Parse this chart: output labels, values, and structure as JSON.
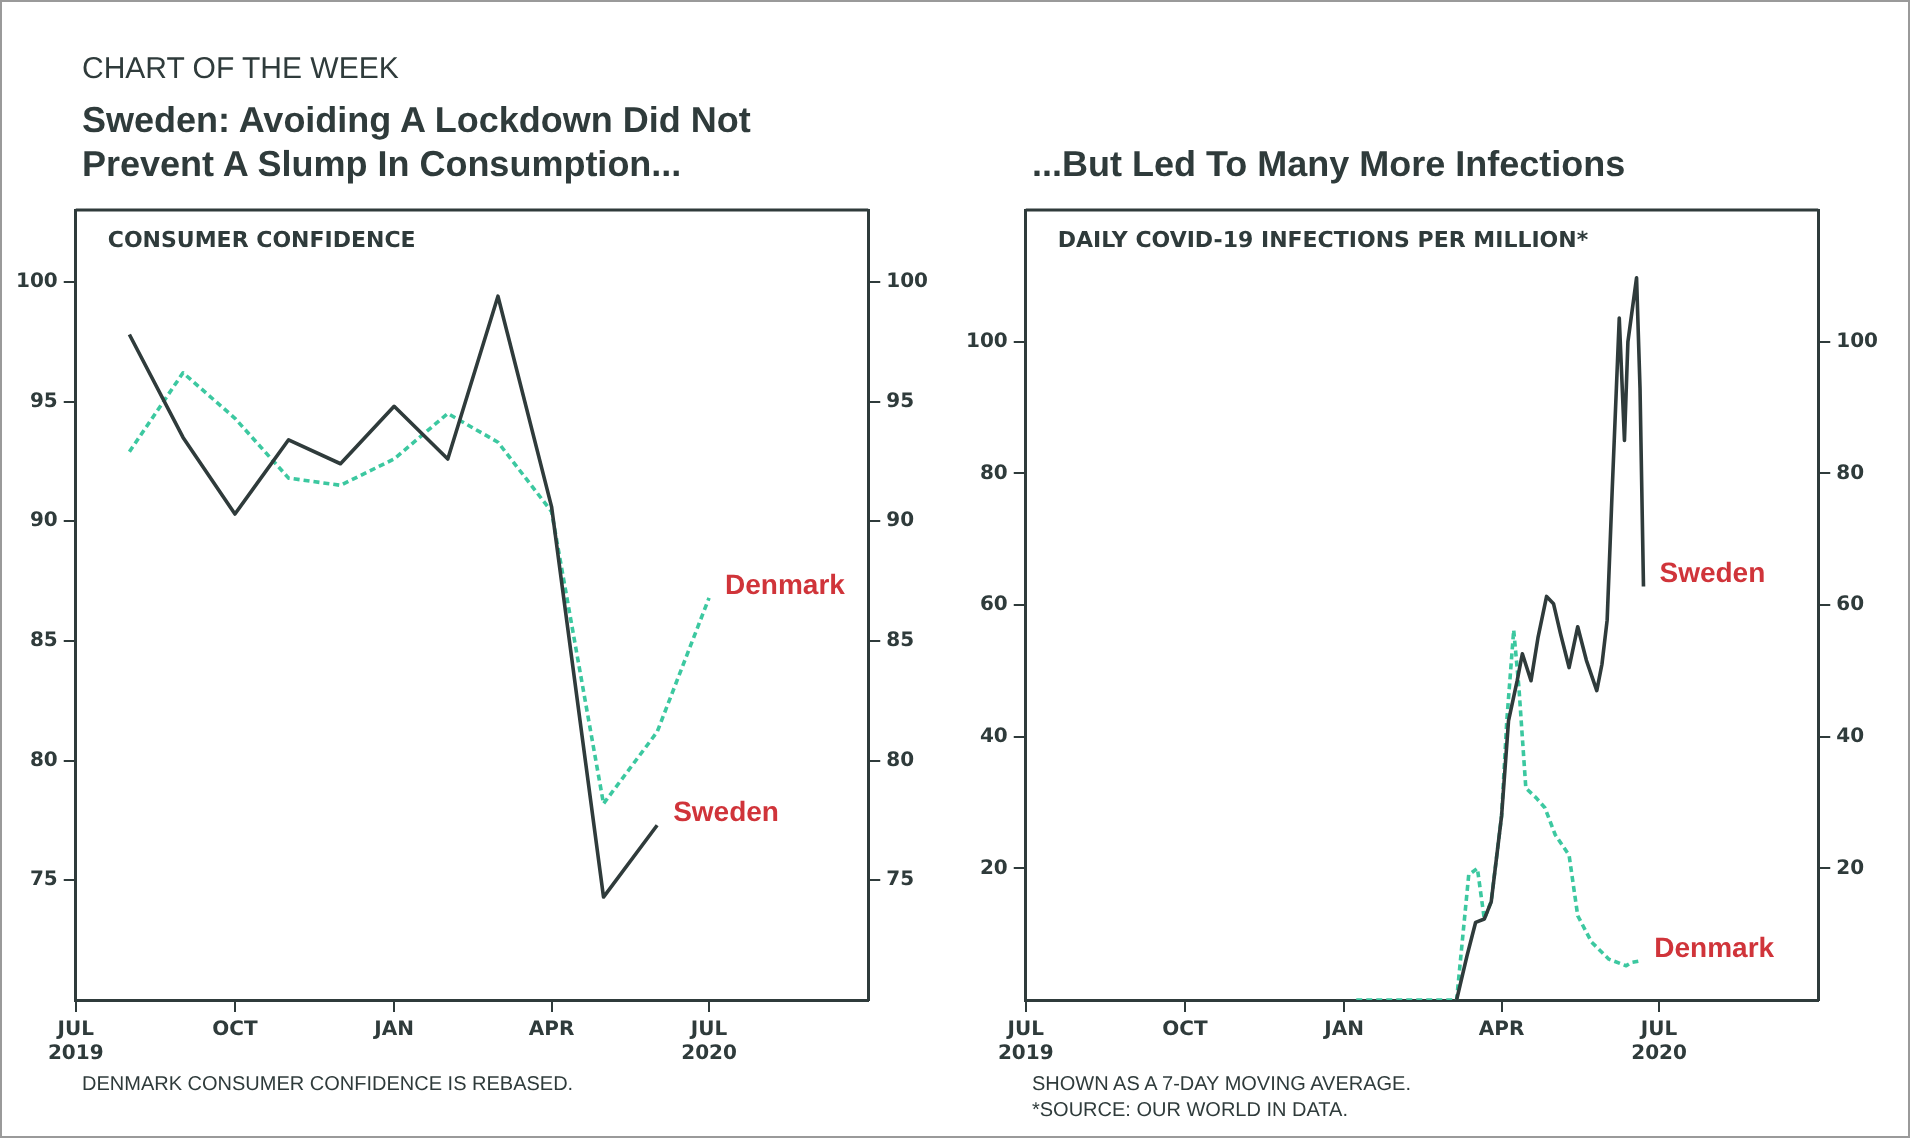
{
  "chart_data": [
    {
      "type": "line",
      "subtitle": "CHART OF THE WEEK",
      "title": "Sweden: Avoiding A Lockdown Did Not Prevent A Slump In Consumption...",
      "ylabel": "CONSUMER CONFIDENCE",
      "x": [
        "2019-08",
        "2019-09",
        "2019-10",
        "2019-11",
        "2019-12",
        "2020-01",
        "2020-02",
        "2020-03",
        "2020-04",
        "2020-05",
        "2020-06",
        "2020-07"
      ],
      "series": [
        {
          "name": "Sweden",
          "color": "#2f3b3b",
          "line_style": "solid",
          "values": [
            97.8,
            93.5,
            90.3,
            93.4,
            92.4,
            94.8,
            92.6,
            99.4,
            90.6,
            74.3,
            77.3,
            null
          ]
        },
        {
          "name": "Denmark",
          "color": "#3cc8a0",
          "line_style": "dashed",
          "values": [
            92.9,
            96.2,
            94.3,
            91.8,
            91.5,
            92.6,
            94.5,
            93.3,
            90.4,
            78.2,
            81.2,
            86.8
          ]
        }
      ],
      "xlim": [
        "2019-07-01",
        "2020-10-01"
      ],
      "xticks": [
        {
          "value": "2019-07-01",
          "label": "JUL\n2019"
        },
        {
          "value": "2019-10-01",
          "label": "OCT"
        },
        {
          "value": "2020-01-01",
          "label": "JAN"
        },
        {
          "value": "2020-04-01",
          "label": "APR"
        },
        {
          "value": "2020-07-01",
          "label": "JUL\n2020"
        }
      ],
      "ylim": [
        70,
        103
      ],
      "yticks": [
        75,
        80,
        85,
        90,
        95,
        100
      ],
      "y2lim": [
        70,
        103
      ],
      "y2ticks": [
        75,
        80,
        85,
        90,
        95,
        100
      ],
      "grid": false,
      "legend": false,
      "marker": "none",
      "annotations": [
        "DENMARK CONSUMER CONFIDENCE IS REBASED."
      ]
    },
    {
      "type": "line",
      "title": "...But Led To Many More Infections",
      "ylabel": "DAILY COVID-19 INFECTIONS PER MILLION*",
      "series": [
        {
          "name": "Sweden",
          "color": "#2f3b3b",
          "line_style": "solid",
          "x": [
            "2020-03-06",
            "2020-03-12",
            "2020-03-17",
            "2020-03-22",
            "2020-03-26",
            "2020-04-01",
            "2020-04-05",
            "2020-04-10",
            "2020-04-13",
            "2020-04-18",
            "2020-04-22",
            "2020-04-27",
            "2020-05-01",
            "2020-05-05",
            "2020-05-10",
            "2020-05-15",
            "2020-05-20",
            "2020-05-26",
            "2020-05-29",
            "2020-06-01",
            "2020-06-04",
            "2020-06-08",
            "2020-06-11",
            "2020-06-13",
            "2020-06-18",
            "2020-06-20",
            "2020-06-22"
          ],
          "values": [
            0,
            6.7,
            11.8,
            12.3,
            14.9,
            28,
            42.4,
            48.5,
            52.6,
            48.5,
            55,
            61.3,
            60.2,
            55.7,
            50.5,
            56.7,
            51.6,
            47,
            51,
            57.7,
            78,
            103.6,
            85,
            100,
            109.7,
            92.9,
            62.8
          ]
        },
        {
          "name": "Denmark",
          "color": "#3cc8a0",
          "line_style": "dashed",
          "x": [
            "2020-01-08",
            "2020-03-06",
            "2020-03-13",
            "2020-03-18",
            "2020-03-22",
            "2020-03-26",
            "2020-04-01",
            "2020-04-04",
            "2020-04-08",
            "2020-04-11",
            "2020-04-15",
            "2020-04-21",
            "2020-04-26",
            "2020-05-02",
            "2020-05-10",
            "2020-05-15",
            "2020-05-23",
            "2020-06-02",
            "2020-06-12",
            "2020-06-15",
            "2020-06-19"
          ],
          "values": [
            0,
            0,
            19,
            20,
            12.3,
            15,
            28,
            42.4,
            56.2,
            47.5,
            32.2,
            30.7,
            29.2,
            25.1,
            22,
            12.8,
            8.8,
            6.2,
            5.2,
            5.7,
            5.9
          ]
        }
      ],
      "xlim": [
        "2019-07-01",
        "2020-10-01"
      ],
      "xticks": [
        {
          "value": "2019-07-01",
          "label": "JUL\n2019"
        },
        {
          "value": "2019-10-01",
          "label": "OCT"
        },
        {
          "value": "2020-01-01",
          "label": "JAN"
        },
        {
          "value": "2020-04-01",
          "label": "APR"
        },
        {
          "value": "2020-07-01",
          "label": "JUL\n2020"
        }
      ],
      "ylim": [
        0,
        120
      ],
      "yticks": [
        20,
        40,
        60,
        80,
        100
      ],
      "y2lim": [
        0,
        120
      ],
      "y2ticks": [
        20,
        40,
        60,
        80,
        100
      ],
      "grid": false,
      "legend": false,
      "marker": "none",
      "annotations": [
        "SHOWN AS A 7-DAY MOVING AVERAGE.",
        "*SOURCE: OUR WORLD IN DATA."
      ]
    }
  ]
}
